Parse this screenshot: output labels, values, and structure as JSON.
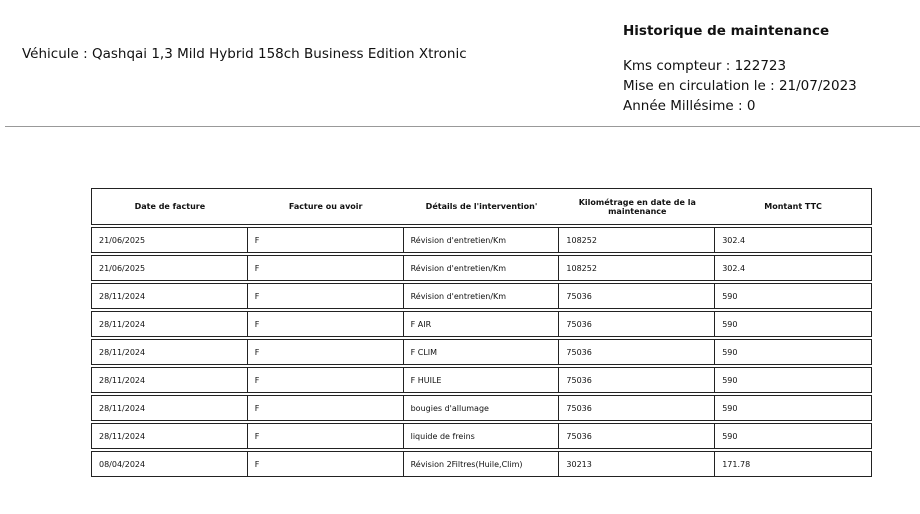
{
  "vehicle": "Véhicule : Qashqai 1,3 Mild Hybrid 158ch Business Edition Xtronic",
  "history": {
    "title": "Historique de maintenance",
    "kms": "Kms compteur : 122723",
    "circulation": "Mise en circulation le : 21/07/2023",
    "millesime": "Année Millésime : 0"
  },
  "table": {
    "headers": [
      "Date de facture",
      "Facture ou avoir",
      "Détails de l'intervention'",
      "Kilométrage en date de la maintenance",
      "Montant TTC"
    ],
    "rows": [
      [
        "21/06/2025",
        "F",
        "Révision d'entretien/Km",
        "108252",
        "302.4"
      ],
      [
        "21/06/2025",
        "F",
        "Révision d'entretien/Km",
        "108252",
        "302.4"
      ],
      [
        "28/11/2024",
        "F",
        "Révision d'entretien/Km",
        "75036",
        "590"
      ],
      [
        "28/11/2024",
        "F",
        "F AIR",
        "75036",
        "590"
      ],
      [
        "28/11/2024",
        "F",
        "F CLIM",
        "75036",
        "590"
      ],
      [
        "28/11/2024",
        "F",
        "F HUILE",
        "75036",
        "590"
      ],
      [
        "28/11/2024",
        "F",
        "bougies d'allumage",
        "75036",
        "590"
      ],
      [
        "28/11/2024",
        "F",
        "liquide de freins",
        "75036",
        "590"
      ],
      [
        "08/04/2024",
        "F",
        "Révision 2Filtres(Huile,Clim)",
        "30213",
        "171.78"
      ]
    ]
  }
}
